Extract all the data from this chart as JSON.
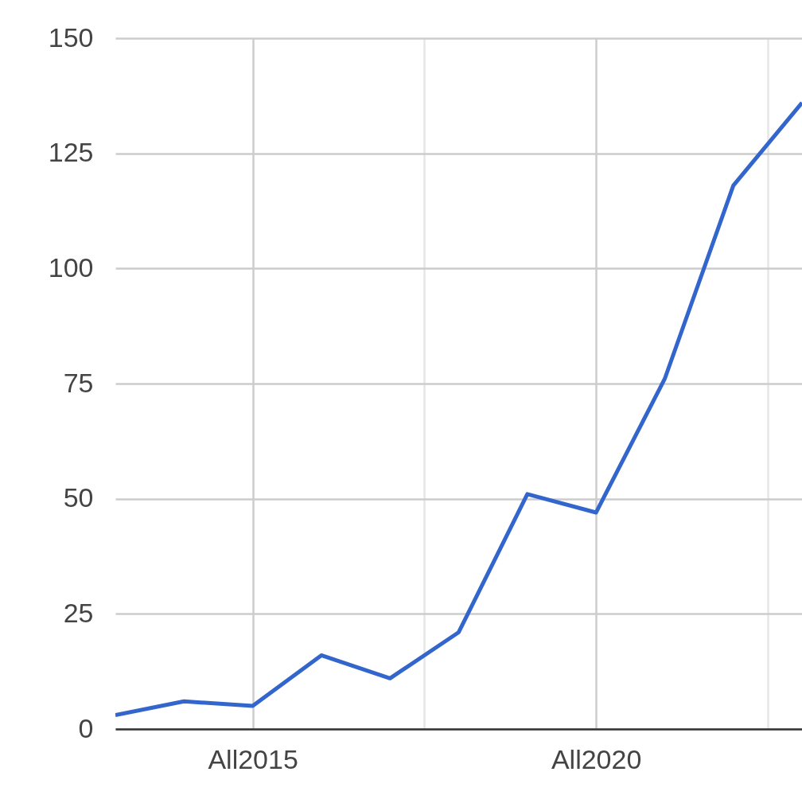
{
  "chart_data": {
    "type": "line",
    "categories": [
      null,
      null,
      "All2015",
      null,
      null,
      null,
      null,
      "All2020",
      null,
      null,
      null
    ],
    "series": [
      {
        "color": "#3366cc",
        "values": [
          3,
          6,
          5,
          16,
          11,
          21,
          51,
          47,
          76,
          118,
          136
        ]
      }
    ],
    "ylim": [
      0,
      150
    ],
    "yticks": [
      0,
      25,
      50,
      75,
      100,
      125,
      150
    ],
    "grid": true
  }
}
